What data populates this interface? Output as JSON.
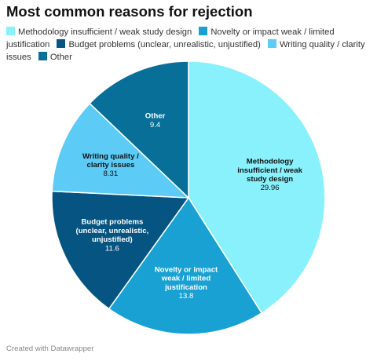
{
  "title": "Most common reasons for rejection",
  "credit": "Created with Datawrapper",
  "chart_data": {
    "type": "pie",
    "title": "Most common reasons for rejection",
    "legend_position": "top",
    "slices": [
      {
        "label": "Methodology insufficient / weak study design",
        "value": 29.96,
        "color": "#88f1fb",
        "label_lines": [
          "Methodology",
          "insufficient / weak",
          "study design"
        ],
        "value_text": "29.96",
        "label_color": "#111111"
      },
      {
        "label": "Novelty or impact weak / limited justification",
        "value": 13.8,
        "color": "#1aa1d3",
        "label_lines": [
          "Novelty or impact",
          "weak / limited",
          "justification"
        ],
        "value_text": "13.8",
        "label_color": "#ffffff"
      },
      {
        "label": "Budget problems (unclear, unrealistic, unjustified)",
        "value": 11.6,
        "color": "#065481",
        "label_lines": [
          "Budget problems",
          "(unclear, unrealistic,",
          "unjustified)"
        ],
        "value_text": "11.6",
        "label_color": "#ffffff"
      },
      {
        "label": "Writing quality / clarity issues",
        "value": 8.31,
        "color": "#5ccbf6",
        "label_lines": [
          "Writing quality /",
          "clarity issues"
        ],
        "value_text": "8.31",
        "label_color": "#111111"
      },
      {
        "label": "Other",
        "value": 9.4,
        "color": "#086f98",
        "label_lines": [
          "Other"
        ],
        "value_text": "9.4",
        "label_color": "#ffffff"
      }
    ]
  }
}
